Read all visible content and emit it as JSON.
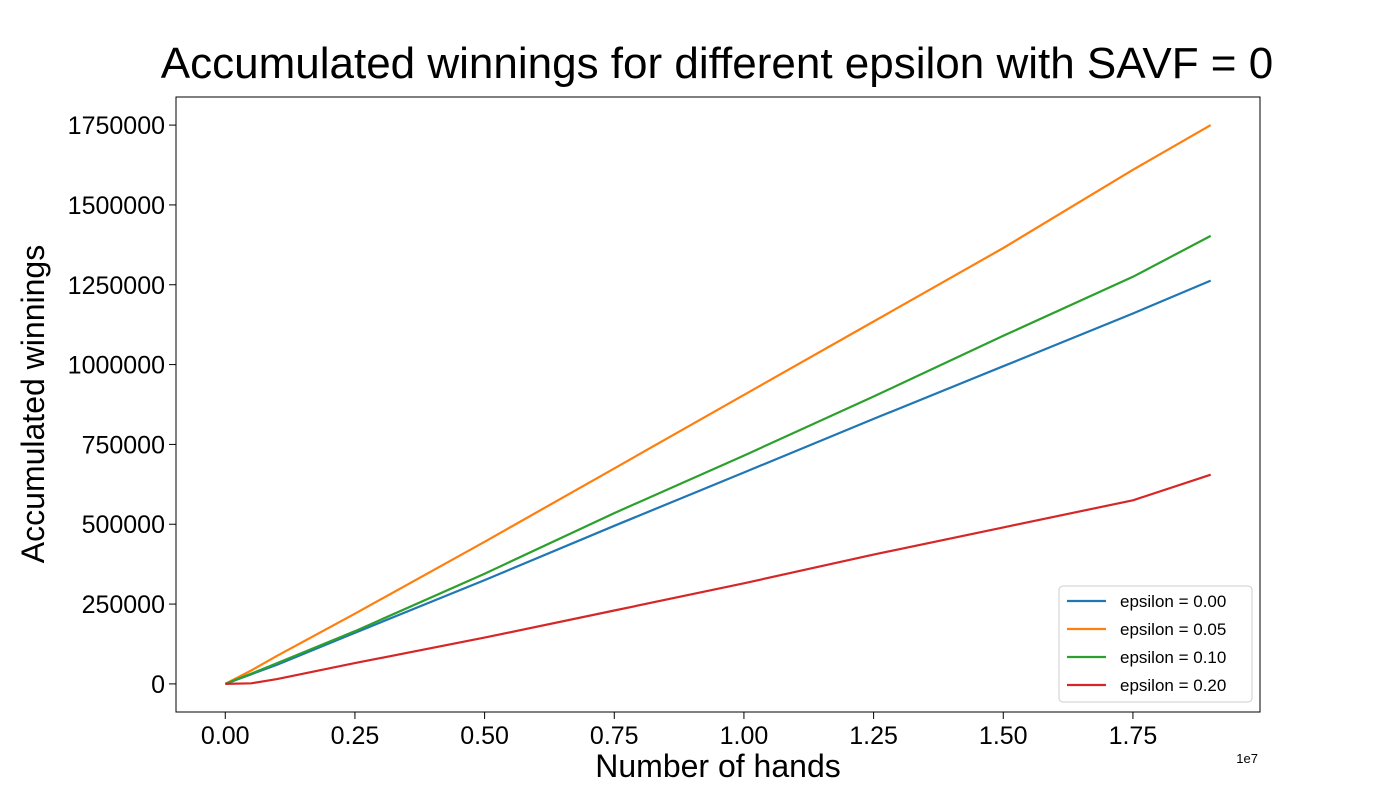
{
  "chart_data": {
    "type": "line",
    "title": "Accumulated winnings for different epsilon with SAVF = 0",
    "xlabel": "Number of hands",
    "ylabel": "Accumulated winnings",
    "x_offset_label": "1e7",
    "xlim": [
      -0.095,
      1.995
    ],
    "ylim": [
      -88000,
      1838000
    ],
    "x_ticks": [
      0.0,
      0.25,
      0.5,
      0.75,
      1.0,
      1.25,
      1.5,
      1.75
    ],
    "x_tick_labels": [
      "0.00",
      "0.25",
      "0.50",
      "0.75",
      "1.00",
      "1.25",
      "1.50",
      "1.75"
    ],
    "y_ticks": [
      0,
      250000,
      500000,
      750000,
      1000000,
      1250000,
      1500000,
      1750000
    ],
    "y_tick_labels": [
      "0",
      "250000",
      "500000",
      "750000",
      "1000000",
      "1250000",
      "1500000",
      "1750000"
    ],
    "grid": false,
    "legend_position": "lower-right",
    "series": [
      {
        "name": "epsilon = 0.00",
        "color": "#1f77b4",
        "x": [
          0.0,
          0.05,
          0.1,
          0.25,
          0.5,
          0.75,
          1.0,
          1.25,
          1.5,
          1.75,
          1.9
        ],
        "y": [
          0,
          30000,
          60000,
          160000,
          325000,
          495000,
          662000,
          830000,
          995000,
          1160000,
          1263000
        ]
      },
      {
        "name": "epsilon = 0.05",
        "color": "#ff7f0e",
        "x": [
          0.0,
          0.05,
          0.1,
          0.25,
          0.5,
          0.75,
          1.0,
          1.25,
          1.5,
          1.75,
          1.9
        ],
        "y": [
          0,
          42000,
          88000,
          220000,
          445000,
          675000,
          905000,
          1135000,
          1365000,
          1610000,
          1750000
        ]
      },
      {
        "name": "epsilon = 0.10",
        "color": "#2ca02c",
        "x": [
          0.0,
          0.05,
          0.1,
          0.25,
          0.5,
          0.75,
          1.0,
          1.25,
          1.5,
          1.75,
          1.9
        ],
        "y": [
          0,
          32000,
          65000,
          165000,
          345000,
          535000,
          715000,
          900000,
          1090000,
          1275000,
          1403000
        ]
      },
      {
        "name": "epsilon = 0.20",
        "color": "#d62728",
        "x": [
          0.0,
          0.05,
          0.1,
          0.25,
          0.5,
          0.75,
          1.0,
          1.25,
          1.5,
          1.75,
          1.9
        ],
        "y": [
          0,
          2000,
          15000,
          65000,
          145000,
          230000,
          315000,
          405000,
          490000,
          575000,
          655000
        ]
      }
    ]
  }
}
